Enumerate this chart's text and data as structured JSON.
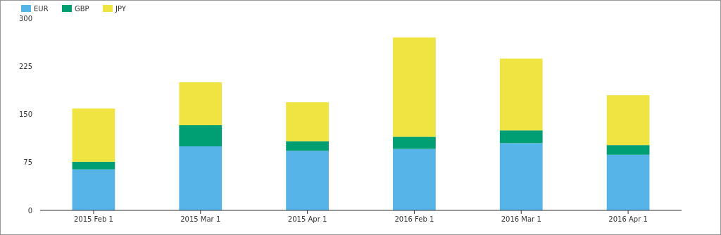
{
  "chart_data": {
    "type": "bar",
    "stacked": true,
    "legend": "top left",
    "grid": false,
    "categories": [
      "2015 Feb 1",
      "2015 Mar 1",
      "2015 Apr 1",
      "2016 Feb 1",
      "2016 Mar 1",
      "2016 Apr 1"
    ],
    "series": [
      {
        "name": "EUR",
        "color": "#56b4e9",
        "values": [
          64,
          100,
          93,
          96,
          105,
          87
        ]
      },
      {
        "name": "GBP",
        "color": "#009e73",
        "values": [
          12,
          33,
          15,
          19,
          20,
          15
        ]
      },
      {
        "name": "JPY",
        "color": "#f0e442",
        "values": [
          83,
          67,
          61,
          155,
          112,
          78
        ]
      }
    ],
    "ylim": [
      0,
      300
    ],
    "yticks": [
      0,
      75,
      150,
      225,
      300
    ]
  }
}
